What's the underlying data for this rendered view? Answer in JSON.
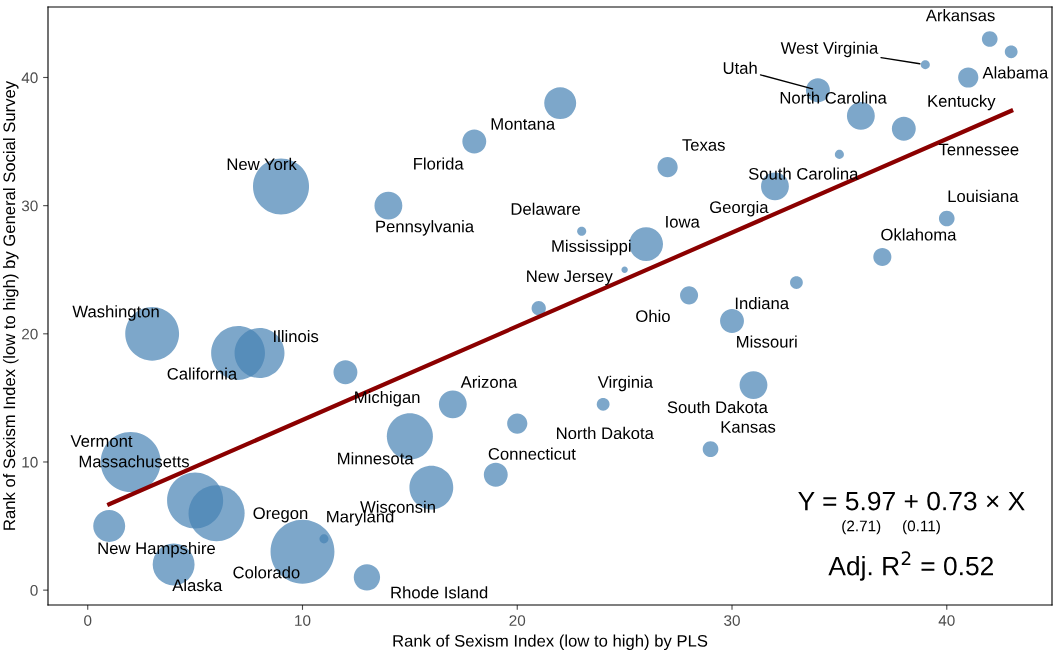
{
  "chart_data": {
    "type": "bubble",
    "xlabel": "Rank of Sexism Index (low to high) by PLS",
    "ylabel": "Rank of Sexism Index (low to high) by General Social Survey",
    "xlim": [
      -1.85,
      44.9
    ],
    "ylim": [
      -1.16,
      45.5
    ],
    "xticks": [
      0,
      10,
      20,
      30,
      40
    ],
    "yticks": [
      0,
      10,
      20,
      30,
      40
    ],
    "grid": false,
    "legend": false,
    "series": [
      {
        "color": "#4682b4",
        "x": [
          42,
          43,
          41,
          39,
          34,
          36,
          38,
          35,
          27,
          22,
          18,
          9,
          14,
          23,
          26,
          25,
          40,
          37,
          32,
          33,
          28,
          21,
          30,
          3,
          7,
          8,
          12,
          17,
          24,
          31,
          20,
          29,
          15,
          19,
          2,
          5,
          6,
          16,
          11,
          1,
          4,
          10,
          13
        ],
        "values": [
          43,
          42,
          40,
          41,
          39,
          37,
          36,
          34,
          33,
          38,
          35,
          31.5,
          30,
          28,
          27,
          25,
          29,
          26,
          31.5,
          24,
          23,
          22,
          21,
          20,
          18.5,
          18.5,
          17,
          14.5,
          14.5,
          16,
          13,
          11,
          12,
          9,
          10,
          7,
          6,
          8,
          4,
          5,
          2,
          3,
          1
        ],
        "sizes": [
          0.06,
          0.04,
          0.1,
          0.02,
          0.14,
          0.19,
          0.14,
          0.02,
          0.1,
          0.25,
          0.14,
          0.77,
          0.19,
          0.02,
          0.28,
          0.01,
          0.06,
          0.08,
          0.19,
          0.04,
          0.08,
          0.05,
          0.14,
          0.71,
          0.71,
          0.61,
          0.14,
          0.19,
          0.04,
          0.19,
          0.1,
          0.06,
          0.52,
          0.14,
          0.88,
          0.77,
          0.77,
          0.47,
          0.02,
          0.25,
          0.43,
          1,
          0.17
        ],
        "value_labels": [
          "Arkansas",
          "Alabama",
          "Kentucky",
          "West Virginia",
          "Utah",
          "North Carolina",
          "Tennessee",
          "South Carolina",
          "Texas",
          "Montana",
          "Florida",
          "New York",
          "Pennsylvania",
          "Delaware",
          "Iowa",
          "Mississippi",
          "Louisiana",
          "Oklahoma",
          "Georgia",
          "Indiana",
          "Ohio",
          "New Jersey",
          "Missouri",
          "Washington",
          "California",
          "Illinois",
          "Michigan",
          "Arizona",
          "Virginia",
          "South Dakota",
          "North Dakota",
          "Kansas",
          "Minnesota",
          "Connecticut",
          "Vermont",
          "Massachusetts",
          "Oregon",
          "Wisconsin",
          "Maryland",
          "New Hampshire",
          "Alaska",
          "Colorado",
          "Rhode Island"
        ]
      },
      {
        "type": "line",
        "color": "#8b0000",
        "x": [
          1,
          43
        ],
        "values": [
          6.7,
          37.4
        ]
      }
    ],
    "annotations": [
      "Y = 5.97 + 0.73 × X",
      "(2.71)",
      "(0.11)",
      "Adj. R$^{2}$ = 0.52"
    ]
  }
}
